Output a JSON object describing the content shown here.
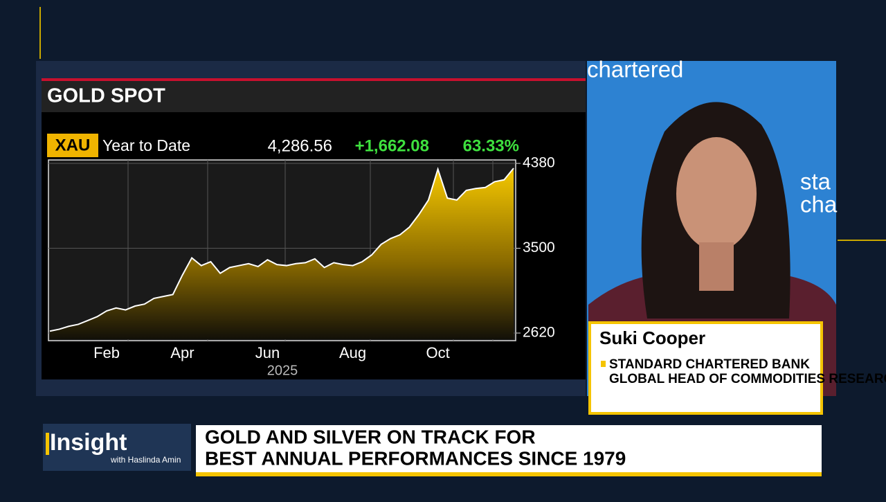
{
  "chart_data": {
    "type": "area",
    "title": "GOLD SPOT",
    "ticker": "XAU",
    "period": "Year to Date",
    "last": "4,286.56",
    "change": "+1,662.08",
    "change_pct": "63.33%",
    "year_label": "2025",
    "categories": [
      null,
      null,
      null,
      null,
      null,
      null,
      "Feb",
      null,
      null,
      null,
      null,
      null,
      null,
      null,
      "Apr",
      null,
      null,
      null,
      null,
      null,
      null,
      null,
      null,
      "Jun",
      null,
      null,
      null,
      null,
      null,
      null,
      null,
      null,
      "Aug",
      null,
      null,
      null,
      null,
      null,
      null,
      null,
      null,
      "Oct",
      null,
      null,
      null,
      null,
      null,
      null,
      null,
      null
    ],
    "values": [
      2640,
      2660,
      2690,
      2710,
      2750,
      2790,
      2850,
      2880,
      2860,
      2900,
      2920,
      2980,
      3000,
      3020,
      3220,
      3400,
      3320,
      3360,
      3240,
      3300,
      3320,
      3340,
      3310,
      3380,
      3330,
      3320,
      3340,
      3350,
      3390,
      3300,
      3350,
      3330,
      3320,
      3360,
      3430,
      3540,
      3600,
      3640,
      3720,
      3850,
      4000,
      4320,
      4020,
      4000,
      4100,
      4120,
      4130,
      4190,
      4210,
      4330
    ],
    "color": "#f2c200",
    "ylim": [
      2620,
      4380
    ],
    "yticks": [
      2620,
      3500,
      4380
    ],
    "grid": true
  },
  "guest": {
    "name": "Suki Cooper",
    "affiliation": "STANDARD CHARTERED BANK",
    "role": "GLOBAL HEAD OF COMMODITIES RESEARCH"
  },
  "backdrop": {
    "logo_top": "chartered",
    "logo_side_1": "sta",
    "logo_side_2": "cha"
  },
  "show": {
    "name": "Insight",
    "host": "with Haslinda Amin"
  },
  "headline": {
    "line1": "GOLD AND SILVER ON TRACK FOR",
    "line2": "BEST ANNUAL PERFORMANCES SINCE 1979"
  }
}
